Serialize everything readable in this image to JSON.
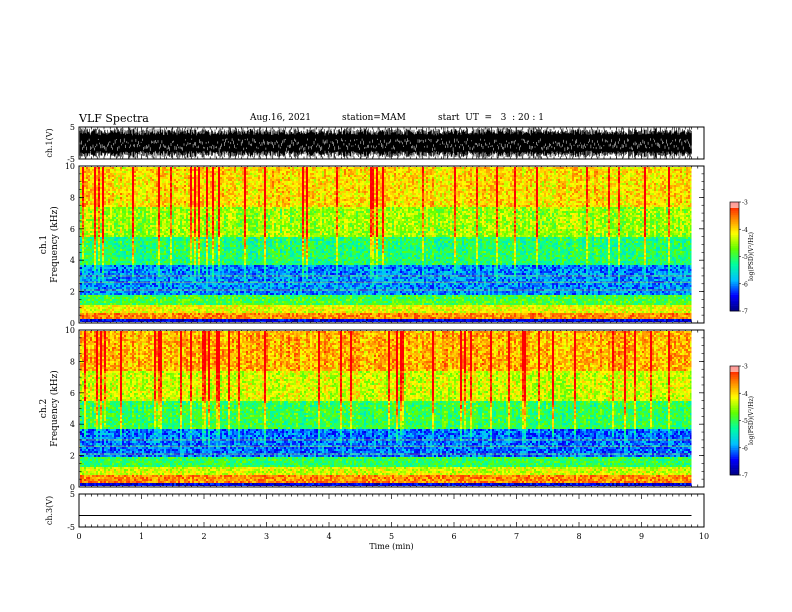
{
  "header": {
    "title": "VLF Spectra",
    "date": "Aug.16, 2021",
    "station": "station=MAM",
    "start": "start  UT  =   3  : 20 : 1"
  },
  "chart_data": [
    {
      "type": "line",
      "name": "ch1-waveform",
      "ylabel": "ch.1(V)",
      "ylim": [
        -5,
        5
      ],
      "yticks": [
        "5",
        "-5"
      ],
      "xlim": [
        0,
        10
      ],
      "description_values": {
        "amplitude_range": [
          -5,
          5
        ],
        "data_end_min": 9.8
      }
    },
    {
      "type": "heatmap",
      "name": "ch1-spectrogram",
      "ylabel_line1": "ch.1",
      "ylabel_line2": "Frequency (kHz)",
      "ylim": [
        0,
        10
      ],
      "yticks": [
        "0",
        "2",
        "4",
        "6",
        "8",
        "10"
      ],
      "xlim": [
        0,
        10
      ],
      "data_end_min": 9.8,
      "colorbar": {
        "label": "log(PSD)(V²/Hz)",
        "range": [
          -7,
          -3
        ],
        "ticks": [
          "-3",
          "-4",
          "-5",
          "-6",
          "-7"
        ],
        "colors": [
          "#000080",
          "#0000ff",
          "#00c0ff",
          "#00ffa0",
          "#60ff00",
          "#ffff00",
          "#ff8000",
          "#ff0000",
          "#ffffff"
        ]
      },
      "bands": [
        {
          "f0": 0,
          "f1": 0.3,
          "level": -6.6
        },
        {
          "f0": 0.3,
          "f1": 0.7,
          "level": -3.6
        },
        {
          "f0": 0.7,
          "f1": 1.2,
          "level": -4.2
        },
        {
          "f0": 1.2,
          "f1": 1.9,
          "level": -4.9
        },
        {
          "f0": 1.9,
          "f1": 3.8,
          "level": -6.0
        },
        {
          "f0": 3.8,
          "f1": 5.5,
          "level": -5.1
        },
        {
          "f0": 5.5,
          "f1": 7.5,
          "level": -4.5
        },
        {
          "f0": 7.5,
          "f1": 10,
          "level": -4.0
        }
      ]
    },
    {
      "type": "heatmap",
      "name": "ch2-spectrogram",
      "ylabel_line1": "ch.2",
      "ylabel_line2": "Frequency (kHz)",
      "ylim": [
        0,
        10
      ],
      "yticks": [
        "0",
        "2",
        "4",
        "6",
        "8",
        "10"
      ],
      "xlim": [
        0,
        10
      ],
      "data_end_min": 9.8,
      "colorbar": {
        "label": "log(PSD)(V²/Hz)",
        "range": [
          -7,
          -3
        ],
        "ticks": [
          "-3",
          "-4",
          "-5",
          "-6",
          "-7"
        ],
        "colors": [
          "#000080",
          "#0000ff",
          "#00c0ff",
          "#00ffa0",
          "#60ff00",
          "#ffff00",
          "#ff8000",
          "#ff0000",
          "#ffffff"
        ]
      },
      "bands": [
        {
          "f0": 0,
          "f1": 0.3,
          "level": -6.6
        },
        {
          "f0": 0.3,
          "f1": 0.8,
          "level": -3.6
        },
        {
          "f0": 0.8,
          "f1": 1.4,
          "level": -4.3
        },
        {
          "f0": 1.4,
          "f1": 2.0,
          "level": -5.0
        },
        {
          "f0": 2.0,
          "f1": 3.8,
          "level": -6.1
        },
        {
          "f0": 3.8,
          "f1": 5.5,
          "level": -5.0
        },
        {
          "f0": 5.5,
          "f1": 7.5,
          "level": -4.3
        },
        {
          "f0": 7.5,
          "f1": 10,
          "level": -3.8
        }
      ]
    },
    {
      "type": "line",
      "name": "ch3-waveform",
      "ylabel": "ch.3(V)",
      "ylim": [
        -5,
        5
      ],
      "yticks": [
        "5",
        "-5"
      ],
      "xlim": [
        0,
        10
      ],
      "xlabel": "Time  (min)",
      "xticks": [
        "0",
        "1",
        "2",
        "3",
        "4",
        "5",
        "6",
        "7",
        "8",
        "9",
        "10"
      ],
      "x": [
        0,
        9.8
      ],
      "y": [
        -1.5,
        -1.5
      ]
    }
  ]
}
